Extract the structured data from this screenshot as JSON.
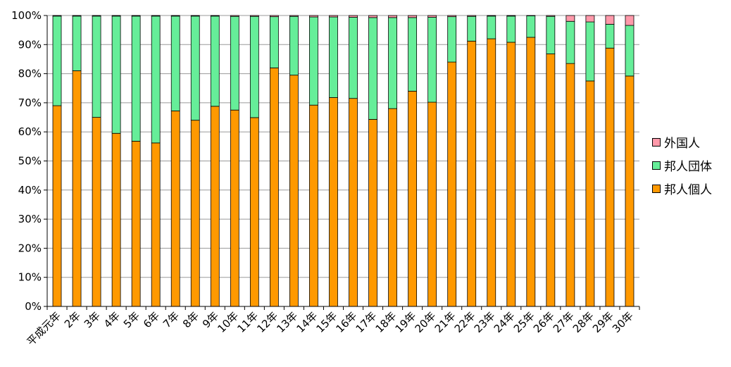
{
  "chart_data": {
    "type": "bar",
    "stacked": true,
    "percent": true,
    "categories": [
      "平成元年",
      "2年",
      "3年",
      "4年",
      "5年",
      "6年",
      "7年",
      "8年",
      "9年",
      "10年",
      "11年",
      "12年",
      "13年",
      "14年",
      "15年",
      "16年",
      "17年",
      "18年",
      "19年",
      "20年",
      "21年",
      "22年",
      "23年",
      "24年",
      "25年",
      "26年",
      "27年",
      "28年",
      "29年",
      "30年"
    ],
    "y_ticks": [
      "0%",
      "10%",
      "20%",
      "30%",
      "40%",
      "50%",
      "60%",
      "70%",
      "80%",
      "90%",
      "100%"
    ],
    "ylim": [
      0,
      100
    ],
    "grid": true,
    "legend_position": "right",
    "series": [
      {
        "name": "邦人個人",
        "color": "#FF9900",
        "values": [
          69.0,
          81.0,
          65.0,
          59.5,
          56.8,
          56.2,
          67.2,
          64.0,
          68.8,
          67.5,
          64.9,
          82.0,
          79.5,
          69.2,
          71.8,
          71.5,
          64.3,
          68.0,
          74.0,
          70.2,
          84.0,
          91.2,
          92.0,
          90.8,
          92.5,
          86.8,
          83.5,
          77.5,
          88.8,
          79.2
        ]
      },
      {
        "name": "邦人団体",
        "color": "#66EE99",
        "values": [
          30.8,
          18.8,
          34.8,
          40.3,
          43.0,
          43.6,
          32.6,
          35.8,
          31.0,
          32.2,
          34.8,
          17.6,
          20.2,
          30.3,
          27.7,
          27.9,
          35.0,
          31.3,
          25.3,
          29.2,
          15.6,
          8.5,
          7.8,
          9.0,
          7.4,
          12.9,
          14.5,
          20.3,
          8.2,
          17.4
        ]
      },
      {
        "name": "外国人",
        "color": "#FF99AA",
        "values": [
          0.2,
          0.2,
          0.2,
          0.2,
          0.2,
          0.2,
          0.2,
          0.2,
          0.2,
          0.3,
          0.3,
          0.4,
          0.3,
          0.5,
          0.5,
          0.6,
          0.7,
          0.7,
          0.7,
          0.6,
          0.4,
          0.3,
          0.2,
          0.2,
          0.1,
          0.3,
          2.0,
          2.2,
          3.0,
          3.4
        ]
      }
    ]
  }
}
